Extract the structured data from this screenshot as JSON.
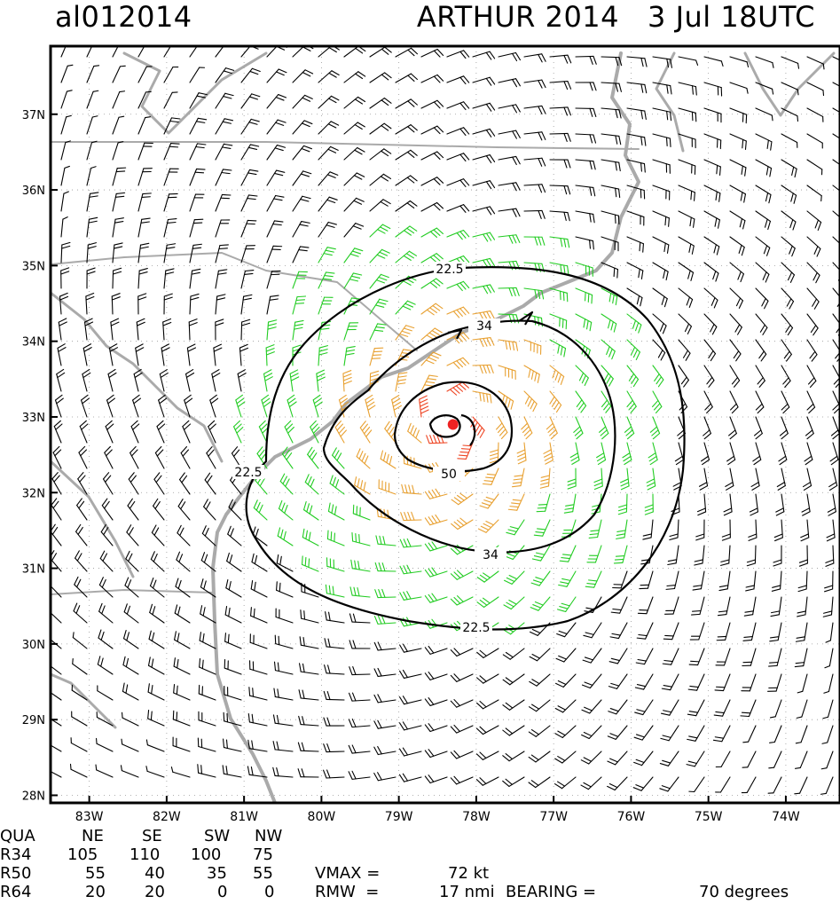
{
  "header": {
    "storm_id": "al012014",
    "storm_name_time": "ARTHUR 2014   3 Jul 18UTC"
  },
  "map": {
    "lat_ticks": [
      "37N",
      "36N",
      "35N",
      "34N",
      "33N",
      "32N",
      "31N",
      "30N",
      "29N",
      "28N"
    ],
    "lon_ticks": [
      "83W",
      "82W",
      "81W",
      "80W",
      "79W",
      "78W",
      "77W",
      "76W",
      "75W",
      "74W"
    ],
    "lat_range": [
      27.9,
      37.9
    ],
    "lon_range": [
      -83.5,
      -73.3
    ],
    "center": {
      "lat": 32.9,
      "lon": -78.3
    },
    "contour_labels": [
      "22.5",
      "22.5",
      "22.5",
      "34",
      "34",
      "50"
    ],
    "colors": {
      "barb_black": "#000000",
      "barb_34kt": "#22cc22",
      "barb_50kt": "#e8a030",
      "barb_64kt": "#ee4422",
      "center_dot": "#ee2222",
      "coastline": "#aaaaaa"
    }
  },
  "table": {
    "header": [
      "QUA",
      "NE",
      "SE",
      "SW",
      "NW"
    ],
    "rows": [
      [
        "R34",
        "105",
        "110",
        "100",
        "75"
      ],
      [
        "R50",
        "55",
        "40",
        "35",
        "55"
      ],
      [
        "R64",
        "20",
        "20",
        "0",
        "0"
      ]
    ],
    "vmax_label": "VMAX =",
    "vmax_value": "72 kt",
    "rmw_label": "RMW  =",
    "rmw_value": "17 nmi",
    "bearing_label": "BEARING =",
    "bearing_value": "70 degrees"
  }
}
